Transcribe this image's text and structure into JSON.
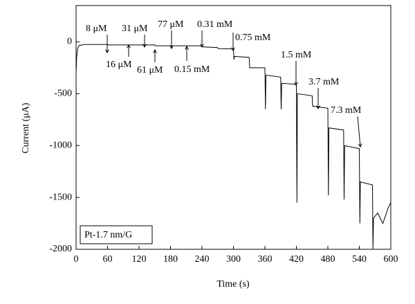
{
  "chart_data": {
    "type": "line",
    "x_label": "Time (s)",
    "y_label": "Current (μA)",
    "legend_text": "Pt-1.7 nm/G",
    "color": "#000000",
    "xlim": [
      0,
      600
    ],
    "xticks": [
      0,
      60,
      120,
      180,
      240,
      300,
      360,
      420,
      480,
      540,
      600
    ],
    "ylim": [
      -2000,
      350
    ],
    "yticks": [
      0,
      -500,
      -1000,
      -1500,
      -2000
    ],
    "annotations": [
      "8 μM",
      "16 μM",
      "31 μM",
      "61 μM",
      "77 μM",
      "0.15 mM",
      "0.31 mM",
      "0.75 mM",
      "1.5 mM",
      "3.7 mM",
      "7.3 mM"
    ],
    "x": [
      0,
      1,
      3,
      6,
      15,
      60,
      61,
      150,
      151,
      240,
      241,
      270,
      271,
      300,
      301,
      302,
      330,
      331,
      360,
      361,
      362,
      390,
      391,
      392,
      420,
      421,
      422,
      450,
      451,
      480,
      481,
      482,
      510,
      511,
      512,
      540,
      541,
      542,
      565,
      566,
      567,
      575,
      585,
      595,
      600
    ],
    "values": [
      -300,
      -150,
      -60,
      -35,
      -25,
      -25,
      -30,
      -30,
      -38,
      -38,
      -48,
      -55,
      -65,
      -68,
      -170,
      -140,
      -150,
      -250,
      -250,
      -650,
      -320,
      -340,
      -650,
      -400,
      -410,
      -1550,
      -500,
      -520,
      -620,
      -640,
      -1480,
      -830,
      -850,
      -1520,
      -1000,
      -1030,
      -1750,
      -1350,
      -1380,
      -2000,
      -1700,
      -1650,
      -1750,
      -1600,
      -1550
    ]
  }
}
